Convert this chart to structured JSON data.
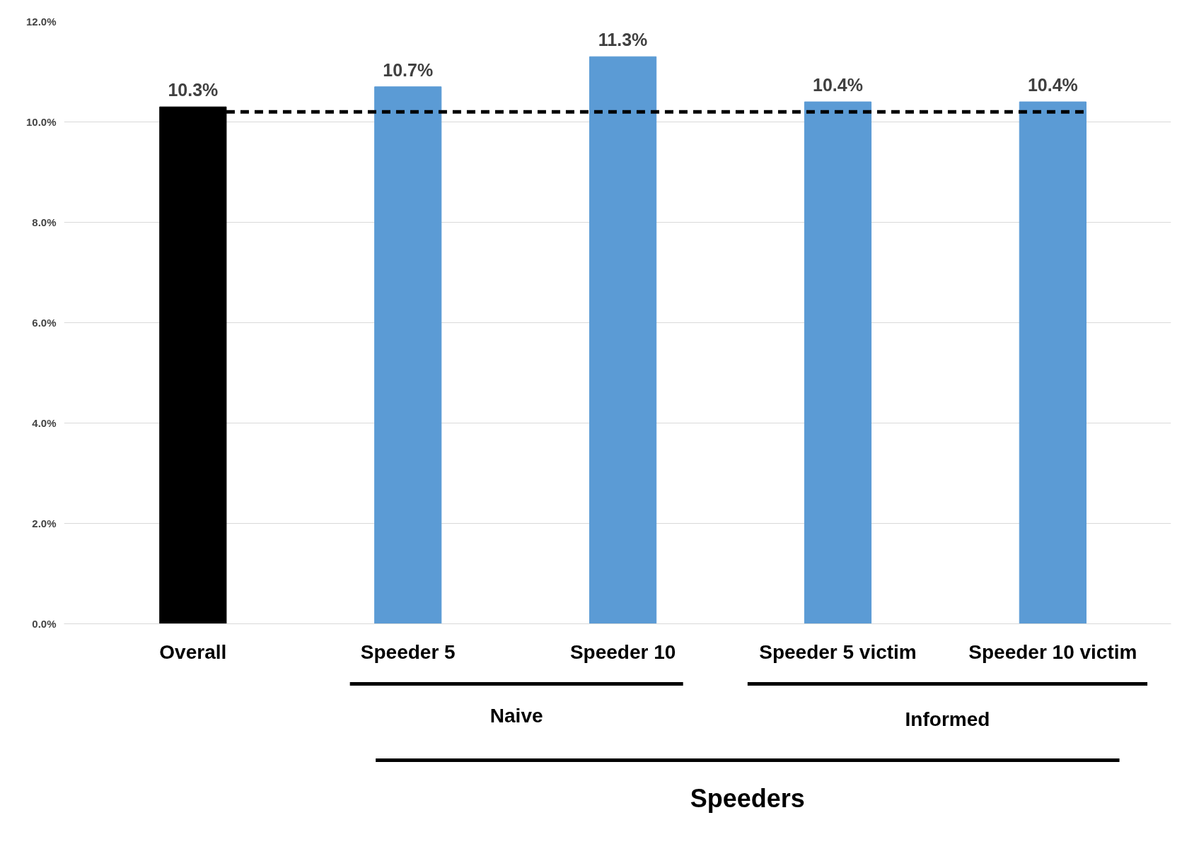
{
  "chart_data": {
    "type": "bar",
    "categories": [
      "Overall",
      "Speeder 5",
      "Speeder 10",
      "Speeder 5 victim",
      "Speeder 10 victim"
    ],
    "values": [
      10.3,
      10.7,
      11.3,
      10.4,
      10.4
    ],
    "value_labels": [
      "10.3%",
      "10.7%",
      "11.3%",
      "10.4%",
      "10.4%"
    ],
    "colors": [
      "#000000",
      "#5b9bd5",
      "#5b9bd5",
      "#5b9bd5",
      "#5b9bd5"
    ],
    "ylim": [
      0,
      12
    ],
    "yticks": [
      {
        "value": 0,
        "label": "0.0%"
      },
      {
        "value": 2,
        "label": "2.0%"
      },
      {
        "value": 4,
        "label": "4.0%"
      },
      {
        "value": 6,
        "label": "6.0%"
      },
      {
        "value": 8,
        "label": "8.0%"
      },
      {
        "value": 10,
        "label": "10.0%"
      },
      {
        "value": 12,
        "label": "12.0%"
      }
    ],
    "grid": "y",
    "ref_lines": [
      {
        "axis": "y",
        "value": 10.2,
        "color": "#000000",
        "line_style": "dashed"
      }
    ],
    "annotations": [
      "Naive",
      "Informed",
      "Speeders"
    ]
  }
}
